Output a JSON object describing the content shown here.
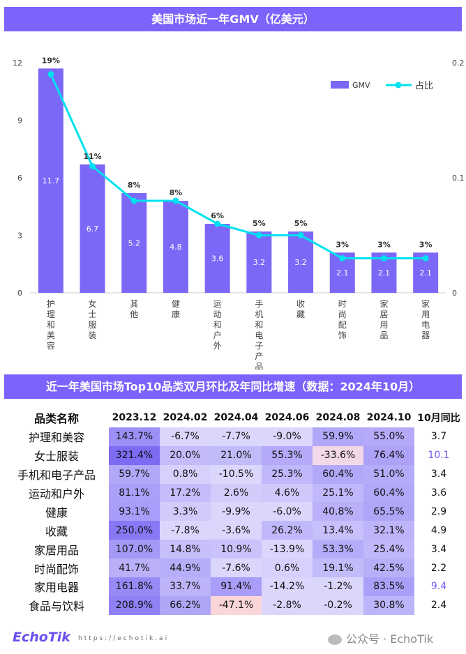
{
  "chart_title": "美国市场近一年GMV（亿美元）",
  "chart_data": {
    "type": "bar+line",
    "categories": [
      "护理和美容",
      "女士服装",
      "其他",
      "健康",
      "运动和户外",
      "手机和电子产品",
      "收藏",
      "时尚配饰",
      "家居用品",
      "家用电器"
    ],
    "series": [
      {
        "name": "GMV",
        "type": "bar",
        "axis": "left",
        "values": [
          11.7,
          6.7,
          5.2,
          4.8,
          3.6,
          3.2,
          3.2,
          2.1,
          2.1,
          2.1
        ]
      },
      {
        "name": "占比",
        "type": "line",
        "axis": "right",
        "values": [
          0.19,
          0.11,
          0.08,
          0.08,
          0.06,
          0.05,
          0.05,
          0.03,
          0.03,
          0.03
        ],
        "labels": [
          "19%",
          "11%",
          "8%",
          "8%",
          "6%",
          "5%",
          "5%",
          "3%",
          "3%",
          "3%"
        ]
      }
    ],
    "y_left": {
      "range": [
        0,
        12
      ],
      "ticks": [
        "0",
        "3",
        "6",
        "9",
        "12"
      ]
    },
    "y_right": {
      "range": [
        0,
        0.2
      ],
      "ticks": [
        "0",
        "0.1",
        "0.2"
      ]
    },
    "legend": "top-right",
    "colors": {
      "bar": "#7b68f7",
      "line": "#00e1ef"
    }
  },
  "table": {
    "title": "近一年美国市场Top10品类双月环比及年同比增速（数据：2024年10月）",
    "headers": [
      "品类名称",
      "2023.12",
      "2024.02",
      "2024.04",
      "2024.06",
      "2024.08",
      "2024.10",
      "10月同比"
    ],
    "rows": [
      {
        "name": "护理和美容",
        "vals": [
          "143.7%",
          "-6.7%",
          "-7.7%",
          "-9.0%",
          "59.9%",
          "55.0%"
        ],
        "yoy": "3.7"
      },
      {
        "name": "女士服装",
        "vals": [
          "321.4%",
          "20.0%",
          "21.0%",
          "55.3%",
          "-33.6%",
          "76.4%"
        ],
        "yoy": "10.1",
        "hl": true
      },
      {
        "name": "手机和电子产品",
        "vals": [
          "59.7%",
          "0.8%",
          "-10.5%",
          "25.3%",
          "60.4%",
          "51.0%"
        ],
        "yoy": "3.4"
      },
      {
        "name": "运动和户外",
        "vals": [
          "81.1%",
          "17.2%",
          "2.6%",
          "4.6%",
          "25.1%",
          "60.4%"
        ],
        "yoy": "3.6"
      },
      {
        "name": "健康",
        "vals": [
          "93.1%",
          "3.3%",
          "-9.9%",
          "-6.0%",
          "40.8%",
          "65.5%"
        ],
        "yoy": "2.9"
      },
      {
        "name": "收藏",
        "vals": [
          "250.0%",
          "-7.8%",
          "-3.6%",
          "26.2%",
          "13.4%",
          "32.1%"
        ],
        "yoy": "4.9"
      },
      {
        "name": "家居用品",
        "vals": [
          "107.0%",
          "14.8%",
          "10.9%",
          "-13.9%",
          "53.3%",
          "25.4%"
        ],
        "yoy": "3.4"
      },
      {
        "name": "时尚配饰",
        "vals": [
          "41.7%",
          "44.9%",
          "-7.6%",
          "0.6%",
          "19.1%",
          "42.5%"
        ],
        "yoy": "2.2"
      },
      {
        "name": "家用电器",
        "vals": [
          "161.8%",
          "33.7%",
          "91.4%",
          "-14.2%",
          "-1.2%",
          "83.5%"
        ],
        "yoy": "9.4",
        "hl": true
      },
      {
        "name": "食品与饮料",
        "vals": [
          "208.9%",
          "66.2%",
          "-47.1%",
          "-2.8%",
          "-0.2%",
          "30.8%"
        ],
        "yoy": "2.4"
      }
    ]
  },
  "footer": {
    "logo": "EchoTik",
    "url": "https://echotik.ai",
    "wechat": "公众号 · EchoTik"
  }
}
